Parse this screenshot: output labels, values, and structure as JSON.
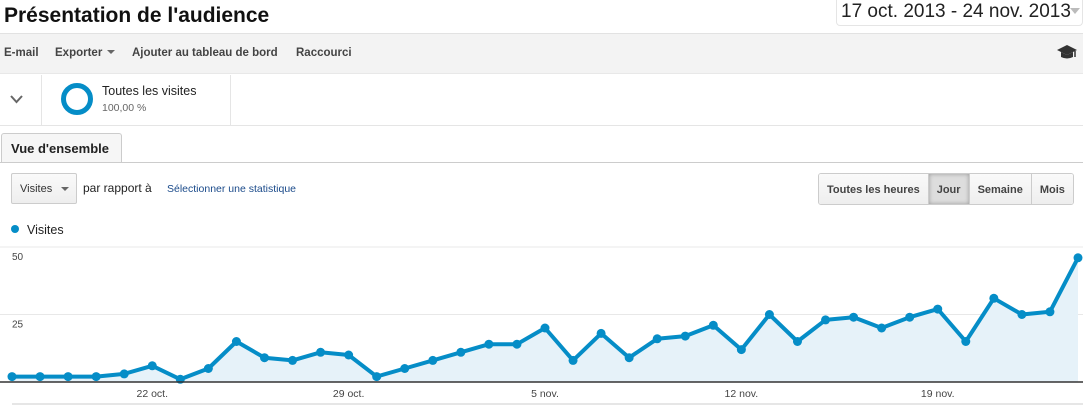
{
  "header": {
    "title": "Présentation de l'audience",
    "date_range": "17 oct. 2013 - 24 nov. 2013"
  },
  "toolbar": {
    "items": [
      "E-mail",
      "Exporter",
      "Ajouter au tableau de bord",
      "Raccourci"
    ],
    "help_icon": "graduation-cap-icon"
  },
  "segment": {
    "name": "Toutes les visites",
    "percent": "100,00 %"
  },
  "tabs": [
    "Vue d'ensemble"
  ],
  "controls": {
    "metric": "Visites",
    "versus": "par rapport à",
    "select_stat": "Sélectionner une statistique",
    "granularity": [
      "Toutes les heures",
      "Jour",
      "Semaine",
      "Mois"
    ],
    "active_granularity": "Jour"
  },
  "colors": {
    "series": "#058dc7",
    "fill": "#e6f2f9"
  },
  "chart_data": {
    "type": "area",
    "legend": "top-left",
    "series": [
      {
        "name": "Visites",
        "values": [
          2,
          2,
          2,
          2,
          3,
          6,
          1,
          5,
          15,
          9,
          8,
          11,
          10,
          2,
          5,
          8,
          11,
          14,
          14,
          20,
          8,
          18,
          9,
          16,
          17,
          21,
          12,
          25,
          15,
          23,
          24,
          20,
          24,
          27,
          15,
          31,
          25,
          26,
          46
        ]
      }
    ],
    "x": [
      "17 oct.",
      "18 oct.",
      "19 oct.",
      "20 oct.",
      "21 oct.",
      "22 oct.",
      "23 oct.",
      "24 oct.",
      "25 oct.",
      "26 oct.",
      "27 oct.",
      "28 oct.",
      "29 oct.",
      "30 oct.",
      "31 oct.",
      "1 nov.",
      "2 nov.",
      "3 nov.",
      "4 nov.",
      "5 nov.",
      "6 nov.",
      "7 nov.",
      "8 nov.",
      "9 nov.",
      "10 nov.",
      "11 nov.",
      "12 nov.",
      "13 nov.",
      "14 nov.",
      "15 nov.",
      "16 nov.",
      "17 nov.",
      "18 nov.",
      "19 nov.",
      "20 nov.",
      "21 nov.",
      "22 nov.",
      "23 nov.",
      "24 nov."
    ],
    "x_tick_labels": [
      "22 oct.",
      "29 oct.",
      "5 nov.",
      "12 nov.",
      "19 nov."
    ],
    "y_tick_labels": [
      "50",
      "25"
    ],
    "ylim": [
      0,
      50
    ],
    "grid": true
  }
}
